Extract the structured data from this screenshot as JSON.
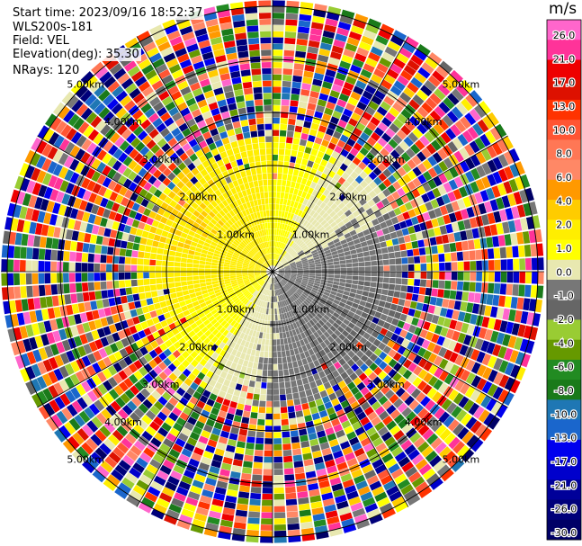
{
  "header": {
    "start_time": "Start time: 2023/09/16 18:52:37",
    "instrument": "WLS200s-181",
    "field": "Field: VEL",
    "elevation": "Elevation(deg): 35.30",
    "nrays": "NRays: 120"
  },
  "chart_data": {
    "type": "heatmap",
    "projection": "polar-ppi",
    "field": "VEL",
    "nrays": 120,
    "range_rings_km": [
      1,
      2,
      3,
      4,
      5
    ],
    "range_ring_labels": [
      "1.00km",
      "2.00km",
      "3.00km",
      "4.00km",
      "5.00km"
    ],
    "colorbar": {
      "unit": "m/s",
      "ticks": [
        "26.0",
        "21.0",
        "17.0",
        "13.0",
        "10.0",
        "8.0",
        "6.0",
        "4.0",
        "2.0",
        "1.0",
        "0.0",
        "-1.0",
        "-2.0",
        "-4.0",
        "-6.0",
        "-8.0",
        "-10.0",
        "-13.0",
        "-17.0",
        "-21.0",
        "-26.0",
        "-30.0"
      ],
      "colors": [
        "#ff66cc",
        "#ff3399",
        "#ee0000",
        "#dd1100",
        "#ff3300",
        "#ff5533",
        "#ff7755",
        "#ff8866",
        "#ff9900",
        "#ffcc00",
        "#ffee00",
        "#ffff00",
        "#e8e8b0",
        "#777777",
        "#666666",
        "#99cc33",
        "#669900",
        "#228b22",
        "#1a7a1a",
        "#1f77b4",
        "#1a66cc",
        "#0000ee",
        "#0000cc",
        "#000099",
        "#00007a",
        "#000066"
      ]
    }
  }
}
